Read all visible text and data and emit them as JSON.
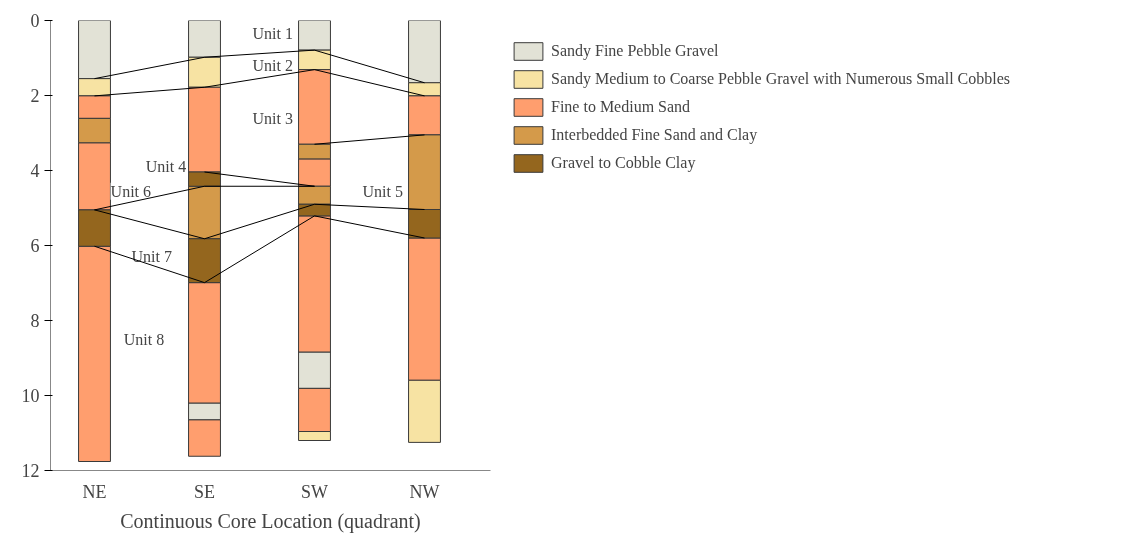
{
  "chart_data": {
    "type": "bar",
    "xlabel": "Continuous Core Location (quadrant)",
    "categories": [
      "NE",
      "SE",
      "SW",
      "NW"
    ],
    "ylim": [
      12,
      0
    ],
    "yticks": [
      0,
      2,
      4,
      6,
      8,
      10,
      12
    ],
    "grid": false,
    "legend": "right",
    "series": [
      {
        "name": "Sandy Fine Pebble Gravel",
        "color": "#e2e2d6",
        "base": [
          0,
          0,
          0,
          0
        ],
        "values": [
          1.55,
          0.98,
          0.79,
          1.66
        ]
      },
      {
        "color": "#e2e2d6",
        "base": [
          null,
          10.2,
          8.84,
          null
        ],
        "values": [
          null,
          0.45,
          0.97,
          null
        ]
      },
      {
        "name": "Sandy Medium to Coarse Pebble Gravel with Numerous Small Cobbles",
        "color": "#f7e3a3",
        "base": [
          1.55,
          0.98,
          0.79,
          1.66
        ],
        "values": [
          0.46,
          0.8,
          0.52,
          0.35
        ]
      },
      {
        "color": "#f7e3a3",
        "base": [
          null,
          null,
          10.96,
          9.59
        ],
        "values": [
          null,
          null,
          0.24,
          1.66
        ]
      },
      {
        "name": "Fine to Medium Sand",
        "color": "#ff9e6e",
        "base": [
          2.01,
          1.78,
          1.31,
          2.01
        ],
        "values": [
          0.6,
          2.26,
          1.99,
          1.04
        ]
      },
      {
        "color": "#ff9e6e",
        "base": [
          3.26,
          null,
          3.69,
          null
        ],
        "values": [
          1.79,
          null,
          0.73,
          null
        ]
      },
      {
        "color": "#ff9e6e",
        "base": [
          6.02,
          6.99,
          5.21,
          5.8
        ],
        "values": [
          5.74,
          3.21,
          3.63,
          3.79
        ]
      },
      {
        "color": "#ff9e6e",
        "base": [
          null,
          10.65,
          9.81,
          null
        ],
        "values": [
          null,
          0.97,
          1.15,
          null
        ]
      },
      {
        "name": "Interbedded Fine Sand and Clay",
        "color": "#d49a4a",
        "base": [
          2.61,
          null,
          3.3,
          null
        ],
        "values": [
          0.65,
          null,
          0.39,
          null
        ]
      },
      {
        "color": "#d49a4a",
        "base": [
          null,
          4.42,
          4.42,
          3.05
        ],
        "values": [
          null,
          1.4,
          0.48,
          1.99
        ]
      },
      {
        "name": "Gravel to Cobble Clay",
        "color": "#94661e",
        "base": [
          null,
          4.04,
          null,
          null
        ],
        "values": [
          null,
          0.38,
          null,
          null
        ]
      },
      {
        "color": "#94661e",
        "base": [
          5.05,
          5.82,
          4.9,
          5.04
        ],
        "values": [
          0.97,
          1.17,
          0.31,
          0.76
        ]
      },
      {
        "type": "line",
        "color": "#000000",
        "values": [
          1.55,
          0.98,
          0.79,
          1.66
        ]
      },
      {
        "type": "line",
        "color": "#000000",
        "values": [
          2.01,
          1.78,
          1.31,
          2.01
        ]
      },
      {
        "type": "line",
        "color": "#000000",
        "values": [
          null,
          null,
          3.3,
          3.05
        ]
      },
      {
        "type": "line",
        "color": "#000000",
        "values": [
          null,
          4.04,
          4.42,
          null
        ]
      },
      {
        "type": "line",
        "color": "#000000",
        "values": [
          5.05,
          4.42,
          4.42,
          null
        ]
      },
      {
        "type": "line",
        "color": "#000000",
        "values": [
          5.05,
          5.82,
          4.9,
          5.04
        ]
      },
      {
        "type": "line",
        "color": "#000000",
        "values": [
          6.02,
          6.99,
          5.21,
          5.8
        ]
      }
    ],
    "annotations": [
      "Unit 1",
      "Unit 2",
      "Unit 3",
      "Unit 4",
      "Unit 5",
      "Unit 6",
      "Unit 7",
      "Unit 8"
    ]
  }
}
